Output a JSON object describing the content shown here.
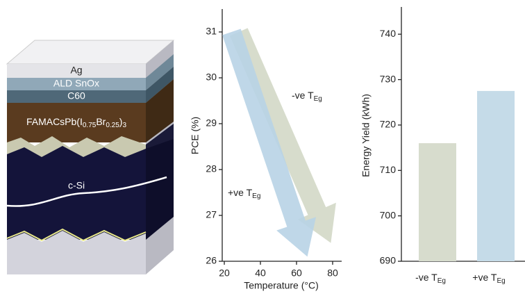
{
  "diagram": {
    "layers": [
      "Ag",
      "ALD SnOx",
      "C60",
      "c-Si"
    ],
    "perovskite": [
      "FAMACsPb(I",
      "0.75",
      "Br",
      "0.25",
      ")",
      "3"
    ]
  },
  "chart_data": [
    {
      "type": "arrow",
      "xlabel": "Temperature (°C)",
      "ylabel": "PCE (%)",
      "xlim": [
        20,
        85
      ],
      "xticks": [
        20,
        40,
        60,
        80
      ],
      "ylim": [
        26,
        31.5
      ],
      "yticks": [
        26,
        27,
        28,
        29,
        30,
        31
      ],
      "series": [
        {
          "name": "+ve T",
          "name_sub": "Eg",
          "color": "#b8d3e6",
          "x": [
            24,
            66
          ],
          "values": [
            31,
            26.1
          ]
        },
        {
          "name": "-ve T",
          "name_sub": "Eg",
          "color": "#d3d8c7",
          "x": [
            28,
            79
          ],
          "values": [
            31,
            26.4
          ]
        }
      ]
    },
    {
      "type": "bar",
      "ylabel": "Energy Yield (kWh)",
      "categories": [
        "-ve T",
        "+ve T"
      ],
      "category_subs": [
        "Eg",
        "Eg"
      ],
      "values": [
        716,
        727.5
      ],
      "colors": [
        "#d7dccd",
        "#c5dbe8"
      ],
      "ylim": [
        690,
        746
      ],
      "yticks": [
        690,
        700,
        710,
        720,
        730,
        740
      ]
    }
  ]
}
